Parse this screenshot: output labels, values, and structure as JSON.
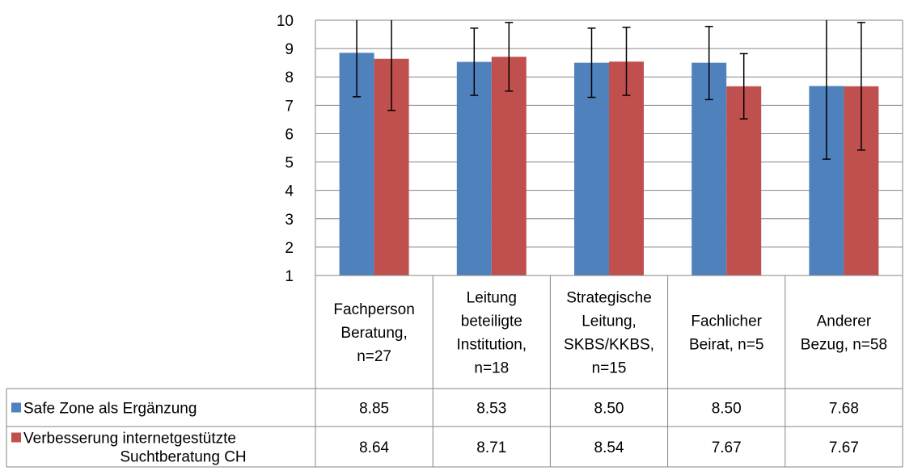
{
  "chart_data": {
    "type": "bar",
    "title": "",
    "xlabel": "",
    "ylabel": "",
    "ylim": [
      1,
      10
    ],
    "y_ticks": [
      "1",
      "2",
      "3",
      "4",
      "5",
      "6",
      "7",
      "8",
      "9",
      "10"
    ],
    "grid": true,
    "legend": "data-table",
    "categories": [
      [
        "Fachperson",
        "Beratung,",
        "n=27"
      ],
      [
        "Leitung",
        "beteiligte",
        "Institution,",
        "n=18"
      ],
      [
        "Strategische",
        "Leitung,",
        "SKBS/KKBS,",
        "n=15"
      ],
      [
        "Fachlicher",
        "Beirat, n=5"
      ],
      [
        "Anderer",
        "Bezug, n=58"
      ]
    ],
    "series": [
      {
        "name": [
          "Safe Zone als Ergänzung"
        ],
        "color": "#4F81BD",
        "values": [
          8.85,
          8.53,
          8.5,
          8.5,
          7.68
        ],
        "labels": [
          "8.85",
          "8.53",
          "8.50",
          "8.50",
          "7.68"
        ],
        "error_low": [
          7.3,
          7.35,
          7.28,
          7.2,
          5.1
        ],
        "error_high": [
          10.0,
          9.72,
          9.72,
          9.78,
          10.0
        ]
      },
      {
        "name": [
          "Verbesserung internetgestützte",
          "Suchtberatung CH"
        ],
        "color": "#C0504D",
        "values": [
          8.64,
          8.71,
          8.54,
          7.67,
          7.67
        ],
        "labels": [
          "8.64",
          "8.71",
          "8.54",
          "7.67",
          "7.67"
        ],
        "error_low": [
          6.82,
          7.5,
          7.35,
          6.52,
          5.42
        ],
        "error_high": [
          10.0,
          9.92,
          9.75,
          8.82,
          9.92
        ]
      }
    ]
  }
}
